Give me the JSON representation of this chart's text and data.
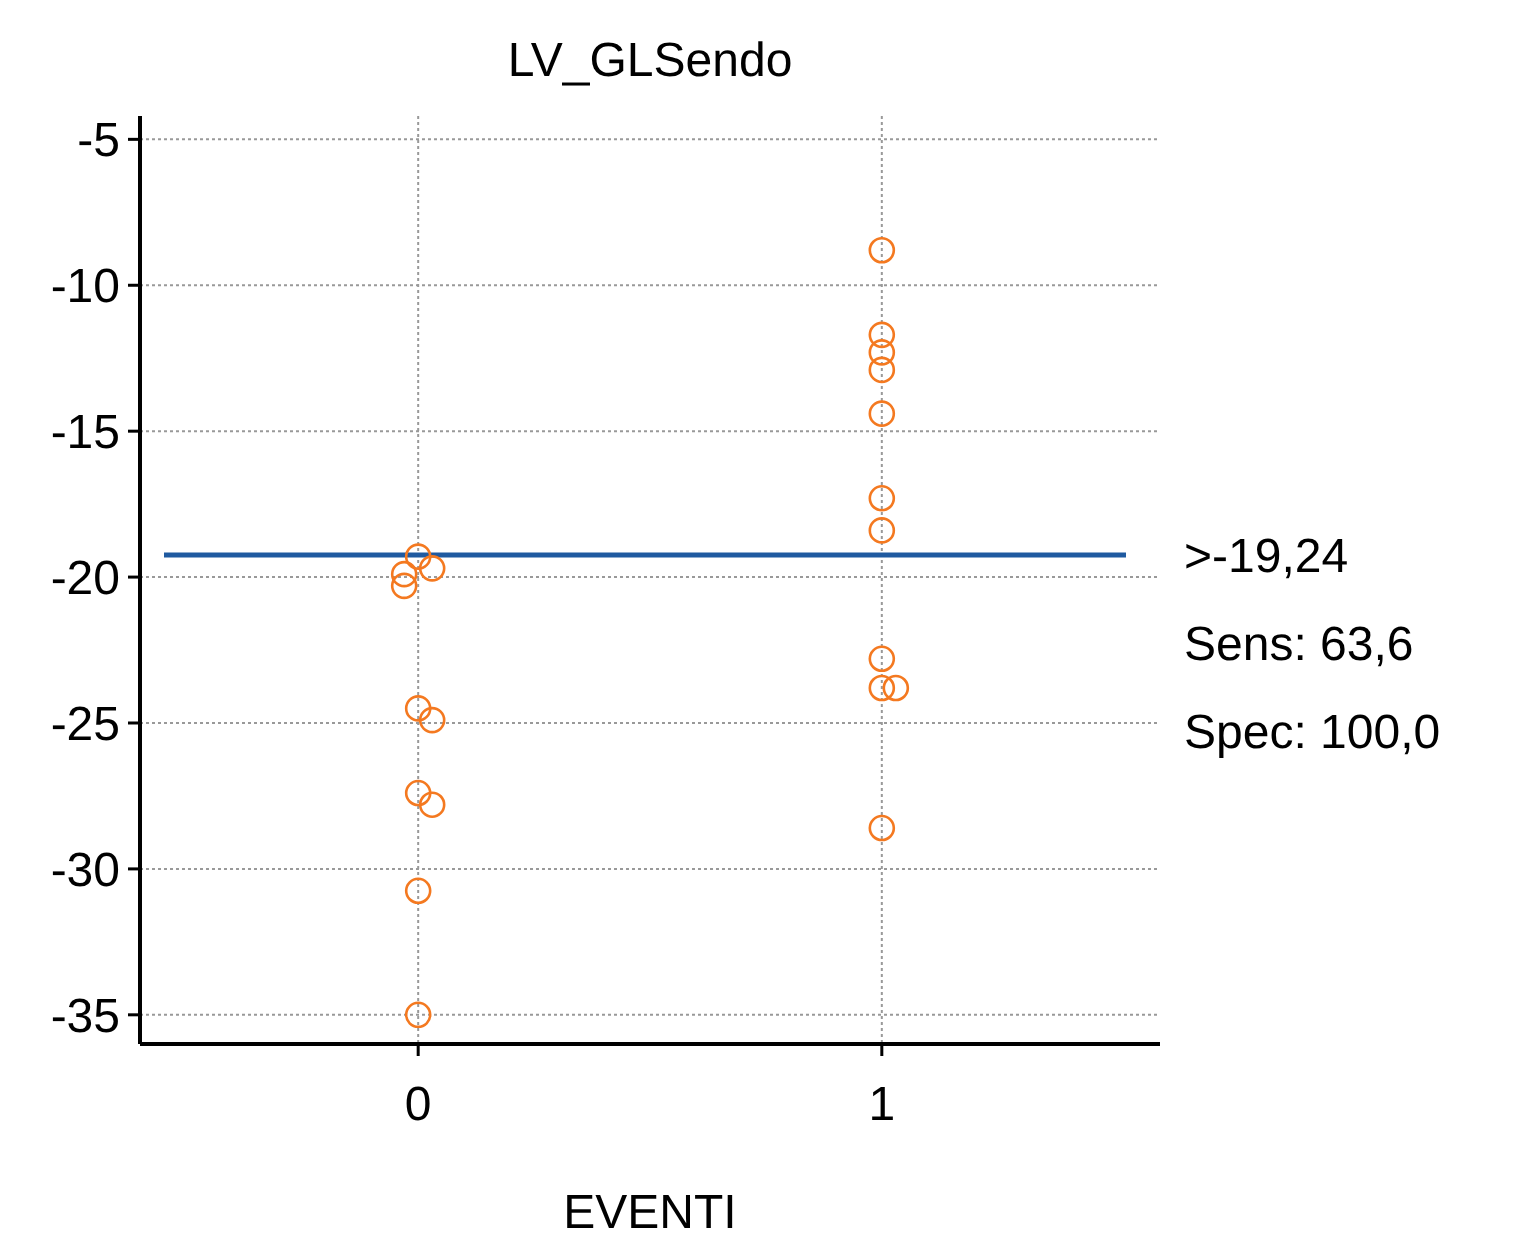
{
  "chart_data": {
    "type": "scatter",
    "title": "LV_GLSendo",
    "xlabel": "EVENTI",
    "categories": [
      "0",
      "1"
    ],
    "series": [
      {
        "color": "#f47920",
        "x": [
          "0",
          "0",
          "0",
          "0",
          "0",
          "0",
          "0",
          "0",
          "0",
          "0",
          "1",
          "1",
          "1",
          "1",
          "1",
          "1",
          "1",
          "1",
          "1",
          "1",
          "1"
        ],
        "values": [
          -19.3,
          -19.7,
          -19.9,
          -20.3,
          -24.5,
          -24.9,
          -27.4,
          -27.8,
          -30.75,
          -35.0,
          -8.8,
          -11.7,
          -12.3,
          -12.9,
          -14.4,
          -17.3,
          -18.4,
          -22.8,
          -23.8,
          -23.8,
          -28.6
        ]
      }
    ],
    "ylim": [
      -36,
      -4.2
    ],
    "yticks": [
      -5,
      -10,
      -15,
      -20,
      -25,
      -30,
      -35
    ],
    "grid": true,
    "marker": "circle",
    "ref_lines": [
      {
        "axis": "y",
        "value": -19.24,
        "label": ">-19,24",
        "color": "#1f5aa0"
      }
    ],
    "annotations": [
      "Sens: 63,6",
      "Spec: 100,0"
    ]
  }
}
